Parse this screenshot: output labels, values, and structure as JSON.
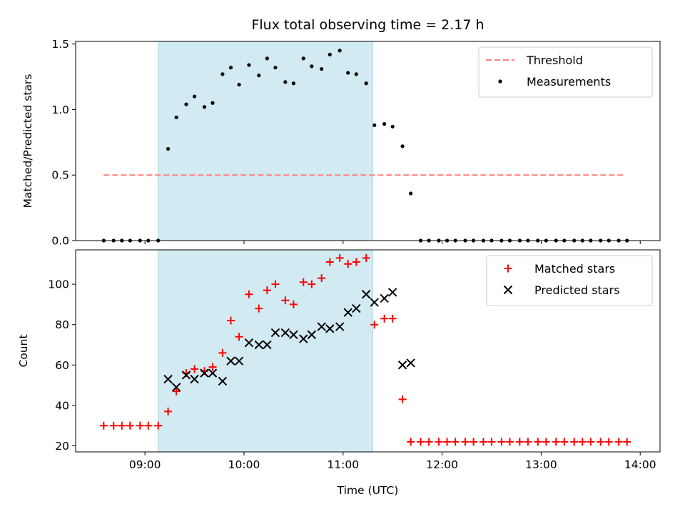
{
  "chart_data": [
    {
      "type": "scatter",
      "title": "Flux total observing time = 2.17 h",
      "ylabel": "Matched/Predicted stars",
      "xlabel": "",
      "xlim": [
        "08:18",
        "14:12"
      ],
      "ylim": [
        0,
        1.52
      ],
      "yticks": [
        "0.0",
        "0.5",
        "1.0",
        "1.5"
      ],
      "yticks_values": [
        0,
        0.5,
        1.0,
        1.5
      ],
      "legend_location": "top-right",
      "shaded_span": [
        "09:08",
        "11:18"
      ],
      "shaded_color": "#add8e6",
      "series": [
        {
          "name": "Threshold",
          "style": "dashed-line",
          "color": "#ff7f7f",
          "x": [
            "08:35",
            "13:50"
          ],
          "values": [
            0.5,
            0.5
          ]
        },
        {
          "name": "Measurements",
          "style": "dot",
          "color": "#000000",
          "x": [
            "08:35",
            "08:41",
            "08:46",
            "08:51",
            "08:57",
            "09:02",
            "09:08",
            "09:14",
            "09:19",
            "09:25",
            "09:30",
            "09:36",
            "09:41",
            "09:47",
            "09:52",
            "09:57",
            "10:03",
            "10:09",
            "10:14",
            "10:19",
            "10:25",
            "10:30",
            "10:36",
            "10:41",
            "10:47",
            "10:52",
            "10:58",
            "11:03",
            "11:08",
            "11:14",
            "11:19",
            "11:25",
            "11:30",
            "11:36",
            "11:41",
            "11:47",
            "11:52",
            "11:58",
            "12:03",
            "12:08",
            "12:14",
            "12:19",
            "12:25",
            "12:30",
            "12:36",
            "12:41",
            "12:47",
            "12:52",
            "12:58",
            "13:03",
            "13:09",
            "13:14",
            "13:20",
            "13:25",
            "13:30",
            "13:36",
            "13:41",
            "13:47",
            "13:52"
          ],
          "values": [
            0,
            0,
            0,
            0,
            0,
            0,
            0,
            0.7,
            0.94,
            1.04,
            1.1,
            1.02,
            1.05,
            1.27,
            1.32,
            1.19,
            1.34,
            1.26,
            1.39,
            1.32,
            1.21,
            1.2,
            1.39,
            1.33,
            1.31,
            1.42,
            1.45,
            1.28,
            1.27,
            1.2,
            0.88,
            0.89,
            0.87,
            0.72,
            0.36,
            0,
            0,
            0,
            0,
            0,
            0,
            0,
            0,
            0,
            0,
            0,
            0,
            0,
            0,
            0,
            0,
            0,
            0,
            0,
            0,
            0,
            0,
            0,
            0
          ]
        }
      ]
    },
    {
      "type": "scatter",
      "title": "",
      "ylabel": "Count",
      "xlabel": "Time (UTC)",
      "xlim": [
        "08:18",
        "14:12"
      ],
      "ylim": [
        17,
        117
      ],
      "yticks": [
        "20",
        "40",
        "60",
        "80",
        "100"
      ],
      "yticks_values": [
        20,
        40,
        60,
        80,
        100
      ],
      "xticks": [
        "09:00",
        "10:00",
        "11:00",
        "12:00",
        "13:00",
        "14:00"
      ],
      "legend_location": "top-right",
      "shaded_span": [
        "09:08",
        "11:18"
      ],
      "shaded_color": "#add8e6",
      "series": [
        {
          "name": "Matched stars",
          "style": "plus",
          "color": "#ff0000",
          "x": [
            "08:35",
            "08:41",
            "08:46",
            "08:51",
            "08:57",
            "09:02",
            "09:08",
            "09:14",
            "09:19",
            "09:25",
            "09:30",
            "09:36",
            "09:41",
            "09:47",
            "09:52",
            "09:57",
            "10:03",
            "10:09",
            "10:14",
            "10:19",
            "10:25",
            "10:30",
            "10:36",
            "10:41",
            "10:47",
            "10:52",
            "10:58",
            "11:03",
            "11:08",
            "11:14",
            "11:19",
            "11:25",
            "11:30",
            "11:36",
            "11:41",
            "11:47",
            "11:52",
            "11:58",
            "12:03",
            "12:08",
            "12:14",
            "12:19",
            "12:25",
            "12:30",
            "12:36",
            "12:41",
            "12:47",
            "12:52",
            "12:58",
            "13:03",
            "13:09",
            "13:14",
            "13:20",
            "13:25",
            "13:30",
            "13:36",
            "13:41",
            "13:47",
            "13:52"
          ],
          "values": [
            30,
            30,
            30,
            30,
            30,
            30,
            30,
            37,
            47,
            56,
            58,
            57,
            59,
            66,
            82,
            74,
            95,
            88,
            97,
            100,
            92,
            90,
            101,
            100,
            103,
            111,
            113,
            110,
            111,
            113,
            80,
            83,
            83,
            43,
            22,
            22,
            22,
            22,
            22,
            22,
            22,
            22,
            22,
            22,
            22,
            22,
            22,
            22,
            22,
            22,
            22,
            22,
            22,
            22,
            22,
            22,
            22,
            22,
            22
          ]
        },
        {
          "name": "Predicted stars",
          "style": "x",
          "color": "#000000",
          "x": [
            "09:14",
            "09:19",
            "09:25",
            "09:30",
            "09:36",
            "09:41",
            "09:47",
            "09:52",
            "09:57",
            "10:03",
            "10:09",
            "10:14",
            "10:19",
            "10:25",
            "10:30",
            "10:36",
            "10:41",
            "10:47",
            "10:52",
            "10:58",
            "11:03",
            "11:08",
            "11:14",
            "11:19",
            "11:25",
            "11:30",
            "11:36",
            "11:41"
          ],
          "values": [
            53,
            49,
            55,
            53,
            56,
            56,
            52,
            62,
            62,
            71,
            70,
            70,
            76,
            76,
            75,
            73,
            75,
            79,
            78,
            79,
            86,
            88,
            95,
            91,
            93,
            96,
            60,
            61
          ]
        }
      ]
    }
  ]
}
